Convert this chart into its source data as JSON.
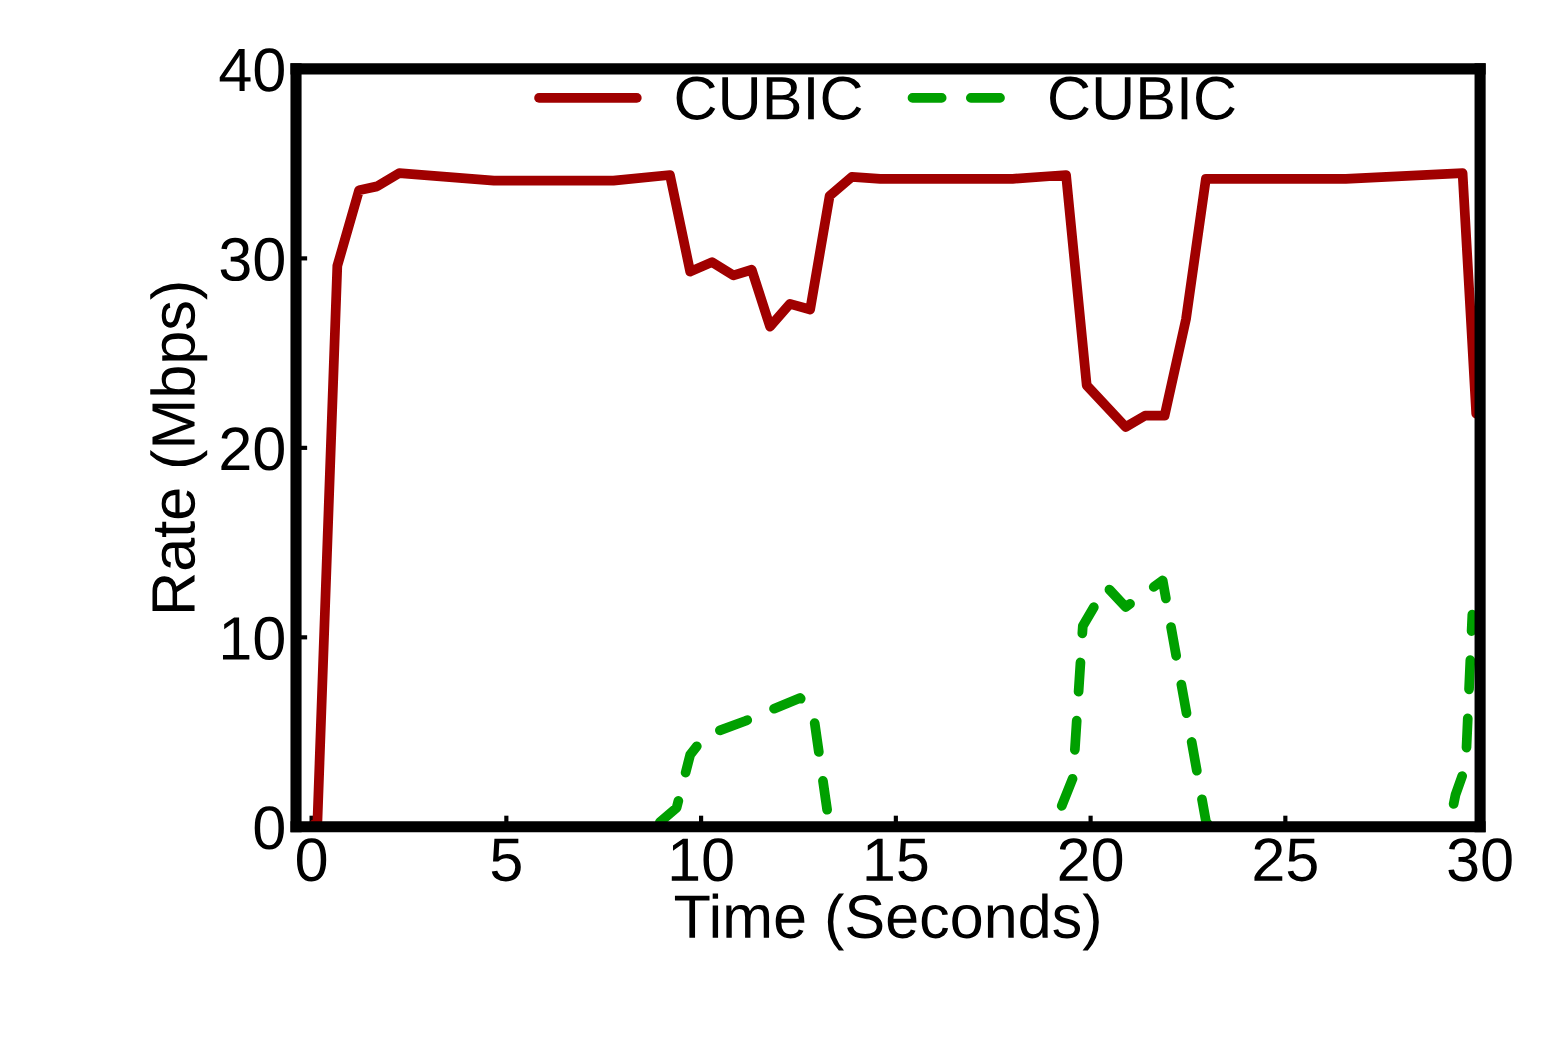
{
  "chart_data": {
    "type": "line",
    "xlabel": "Time (Seconds)",
    "ylabel": "Rate (Mbps)",
    "xlim": [
      -0.4,
      30
    ],
    "ylim": [
      0,
      40
    ],
    "xticks": [
      0,
      5,
      10,
      15,
      20,
      25,
      30
    ],
    "yticks": [
      0,
      10,
      20,
      30,
      40
    ],
    "grid": false,
    "legend": "top",
    "marker": "none",
    "series": [
      {
        "name": "CUBIC",
        "color": "#a00000",
        "line_style": "solid",
        "x": [
          0,
          0.15,
          0.66,
          1.22,
          1.68,
          2.25,
          4.68,
          7.75,
          9.2,
          9.72,
          10.28,
          10.83,
          11.3,
          11.77,
          12.28,
          12.8,
          13.3,
          13.87,
          14.6,
          18.0,
          19.37,
          19.9,
          20.9,
          21.4,
          21.9,
          22.45,
          22.96,
          26.55,
          29.55,
          29.9
        ],
        "values": [
          0,
          0.3,
          29.6,
          33.6,
          33.8,
          34.5,
          34.1,
          34.1,
          34.4,
          29.3,
          29.8,
          29.1,
          29.4,
          26.4,
          27.6,
          27.3,
          33.3,
          34.3,
          34.2,
          34.2,
          34.4,
          23.3,
          21.1,
          21.7,
          21.7,
          26.8,
          34.2,
          34.2,
          34.5,
          21.8
        ]
      },
      {
        "name": "CUBIC",
        "color": "#00a000",
        "line_style": "dashed",
        "x": [
          0,
          8.8,
          9.37,
          9.72,
          10.1,
          11.15,
          11.6,
          12.54,
          12.88,
          13.2,
          13.3,
          19.0,
          19.2,
          19.55,
          19.8,
          20.4,
          20.9,
          21.85,
          22.96,
          23.05,
          29.2,
          29.37,
          29.63,
          29.8
        ],
        "values": [
          0,
          0,
          1.0,
          3.8,
          4.8,
          5.6,
          6.0,
          6.8,
          6.0,
          1.4,
          0,
          0,
          0.8,
          2.6,
          10.6,
          12.7,
          11.6,
          13.0,
          0.3,
          0,
          0,
          1.7,
          3.2,
          11.2
        ]
      }
    ]
  }
}
